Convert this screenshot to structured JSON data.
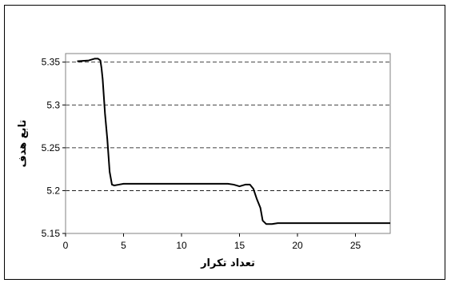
{
  "chart_data": {
    "type": "line",
    "title": "",
    "xlabel": "تعداد تکرار",
    "ylabel": "تابع هدف",
    "xlim": [
      0,
      28
    ],
    "ylim": [
      5.15,
      5.36
    ],
    "xticks": [
      0,
      5,
      10,
      15,
      20,
      25
    ],
    "yticks": [
      5.15,
      5.2,
      5.25,
      5.3,
      5.35
    ],
    "xtick_labels": [
      "0",
      "5",
      "10",
      "15",
      "20",
      "25"
    ],
    "ytick_labels": [
      "5.15",
      "5.2",
      "5.25",
      "5.3",
      "5.35"
    ],
    "grid": "horizontal-dashed",
    "line_color": "#000000",
    "series": [
      {
        "x": [
          1,
          2,
          2.5,
          2.8,
          3.0,
          3.1,
          3.2,
          3.3,
          3.4,
          3.6,
          3.8,
          4.0,
          4.2,
          4.6,
          5,
          6,
          8,
          10,
          12,
          14,
          14.5,
          15,
          15.5,
          15.9,
          16.2,
          16.5,
          16.8,
          17.0,
          17.3,
          17.8,
          18.3,
          20,
          22,
          25,
          28
        ],
        "y": [
          5.351,
          5.352,
          5.354,
          5.354,
          5.352,
          5.343,
          5.33,
          5.31,
          5.29,
          5.26,
          5.222,
          5.207,
          5.206,
          5.207,
          5.208,
          5.208,
          5.208,
          5.208,
          5.208,
          5.208,
          5.207,
          5.205,
          5.207,
          5.207,
          5.202,
          5.19,
          5.18,
          5.165,
          5.161,
          5.161,
          5.162,
          5.162,
          5.162,
          5.162,
          5.162
        ]
      }
    ]
  }
}
